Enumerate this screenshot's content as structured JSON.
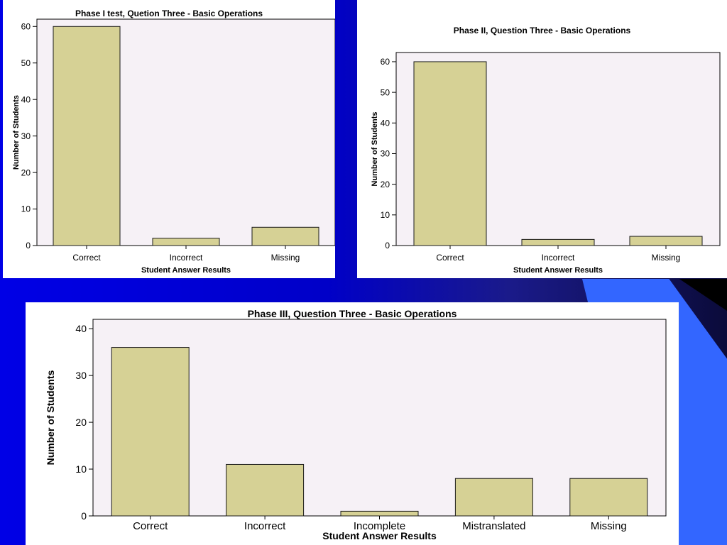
{
  "chart_data": [
    {
      "type": "bar",
      "title": "Phase I test, Quetion Three - Basic Operations",
      "xlabel": "Student Answer Results",
      "ylabel": "Number of Students",
      "categories": [
        "Correct",
        "Incorrect",
        "Missing"
      ],
      "values": [
        60,
        2,
        5
      ],
      "ylim": [
        0,
        62
      ],
      "yticks": [
        0,
        10,
        20,
        30,
        40,
        50,
        60
      ],
      "grid": false,
      "legend": "none",
      "bar_color": "#d6d195",
      "plot_background": "#f6f1f6"
    },
    {
      "type": "bar",
      "title": "Phase II, Question Three - Basic Operations",
      "xlabel": "Student Answer Results",
      "ylabel": "Number of Students",
      "categories": [
        "Correct",
        "Incorrect",
        "Missing"
      ],
      "values": [
        60,
        2,
        3
      ],
      "ylim": [
        0,
        63
      ],
      "yticks": [
        0,
        10,
        20,
        30,
        40,
        50,
        60
      ],
      "grid": false,
      "legend": "none",
      "bar_color": "#d6d195",
      "plot_background": "#f6f1f6"
    },
    {
      "type": "bar",
      "title": "Phase III, Question Three - Basic Operations",
      "xlabel": "Student Answer Results",
      "ylabel": "Number of Students",
      "categories": [
        "Correct",
        "Incorrect",
        "Incomplete",
        "Mistranslated",
        "Missing"
      ],
      "values": [
        36,
        11,
        1,
        8,
        8
      ],
      "ylim": [
        0,
        42
      ],
      "yticks": [
        0,
        10,
        20,
        30,
        40
      ],
      "grid": false,
      "legend": "none",
      "bar_color": "#d6d195",
      "plot_background": "#f6f1f6"
    }
  ]
}
